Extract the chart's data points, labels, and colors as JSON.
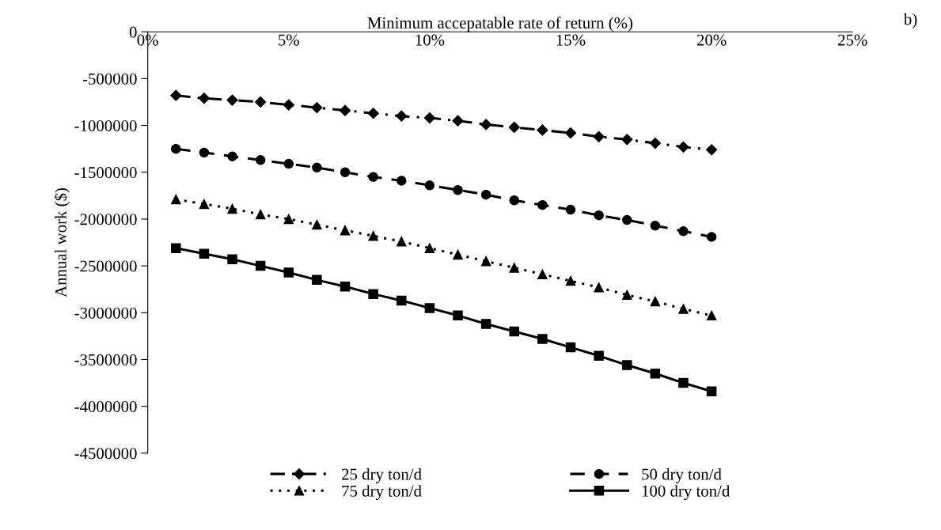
{
  "chart_data": {
    "type": "line",
    "xlabel": "Minimum accepatable rate of return (%)",
    "ylabel": "Annual work ($)",
    "x": [
      1,
      2,
      3,
      4,
      5,
      6,
      7,
      8,
      9,
      10,
      11,
      12,
      13,
      14,
      15,
      16,
      17,
      18,
      19,
      20
    ],
    "series": [
      {
        "name": "25 dry ton/d",
        "color": "#000000",
        "marker": "diamond",
        "line_style": "dashdot",
        "values": [
          -680000,
          -710000,
          -730000,
          -750000,
          -780000,
          -810000,
          -840000,
          -870000,
          -900000,
          -920000,
          -950000,
          -990000,
          -1020000,
          -1050000,
          -1080000,
          -1120000,
          -1150000,
          -1190000,
          -1230000,
          -1260000
        ]
      },
      {
        "name": "50 dry ton/d",
        "color": "#000000",
        "marker": "circle",
        "line_style": "dashed",
        "values": [
          -1250000,
          -1290000,
          -1330000,
          -1370000,
          -1410000,
          -1450000,
          -1500000,
          -1550000,
          -1590000,
          -1640000,
          -1690000,
          -1740000,
          -1800000,
          -1850000,
          -1900000,
          -1960000,
          -2010000,
          -2070000,
          -2130000,
          -2190000
        ]
      },
      {
        "name": "75 dry ton/d",
        "color": "#000000",
        "marker": "triangle",
        "line_style": "dotted",
        "values": [
          -1790000,
          -1840000,
          -1890000,
          -1950000,
          -2000000,
          -2060000,
          -2120000,
          -2180000,
          -2240000,
          -2310000,
          -2380000,
          -2450000,
          -2520000,
          -2590000,
          -2660000,
          -2730000,
          -2810000,
          -2880000,
          -2960000,
          -3030000
        ]
      },
      {
        "name": "100 dry ton/d",
        "color": "#000000",
        "marker": "square",
        "line_style": "solid",
        "values": [
          -2310000,
          -2370000,
          -2430000,
          -2500000,
          -2570000,
          -2650000,
          -2720000,
          -2800000,
          -2870000,
          -2950000,
          -3030000,
          -3120000,
          -3200000,
          -3280000,
          -3370000,
          -3460000,
          -3560000,
          -3650000,
          -3750000,
          -3840000
        ]
      }
    ],
    "xlim": [
      0,
      25
    ],
    "xticks": [
      {
        "value": 0,
        "label": "0%"
      },
      {
        "value": 5,
        "label": "5%"
      },
      {
        "value": 10,
        "label": "10%"
      },
      {
        "value": 15,
        "label": "15%"
      },
      {
        "value": 20,
        "label": "20%"
      },
      {
        "value": 25,
        "label": "25%"
      }
    ],
    "ylim": [
      -4500000,
      0
    ],
    "yticks": [
      -4500000,
      -4000000,
      -3500000,
      -3000000,
      -2500000,
      -2000000,
      -1500000,
      -1000000,
      -500000,
      0
    ],
    "annotations": [
      "b)"
    ],
    "grid": false,
    "legend": "bottom"
  }
}
